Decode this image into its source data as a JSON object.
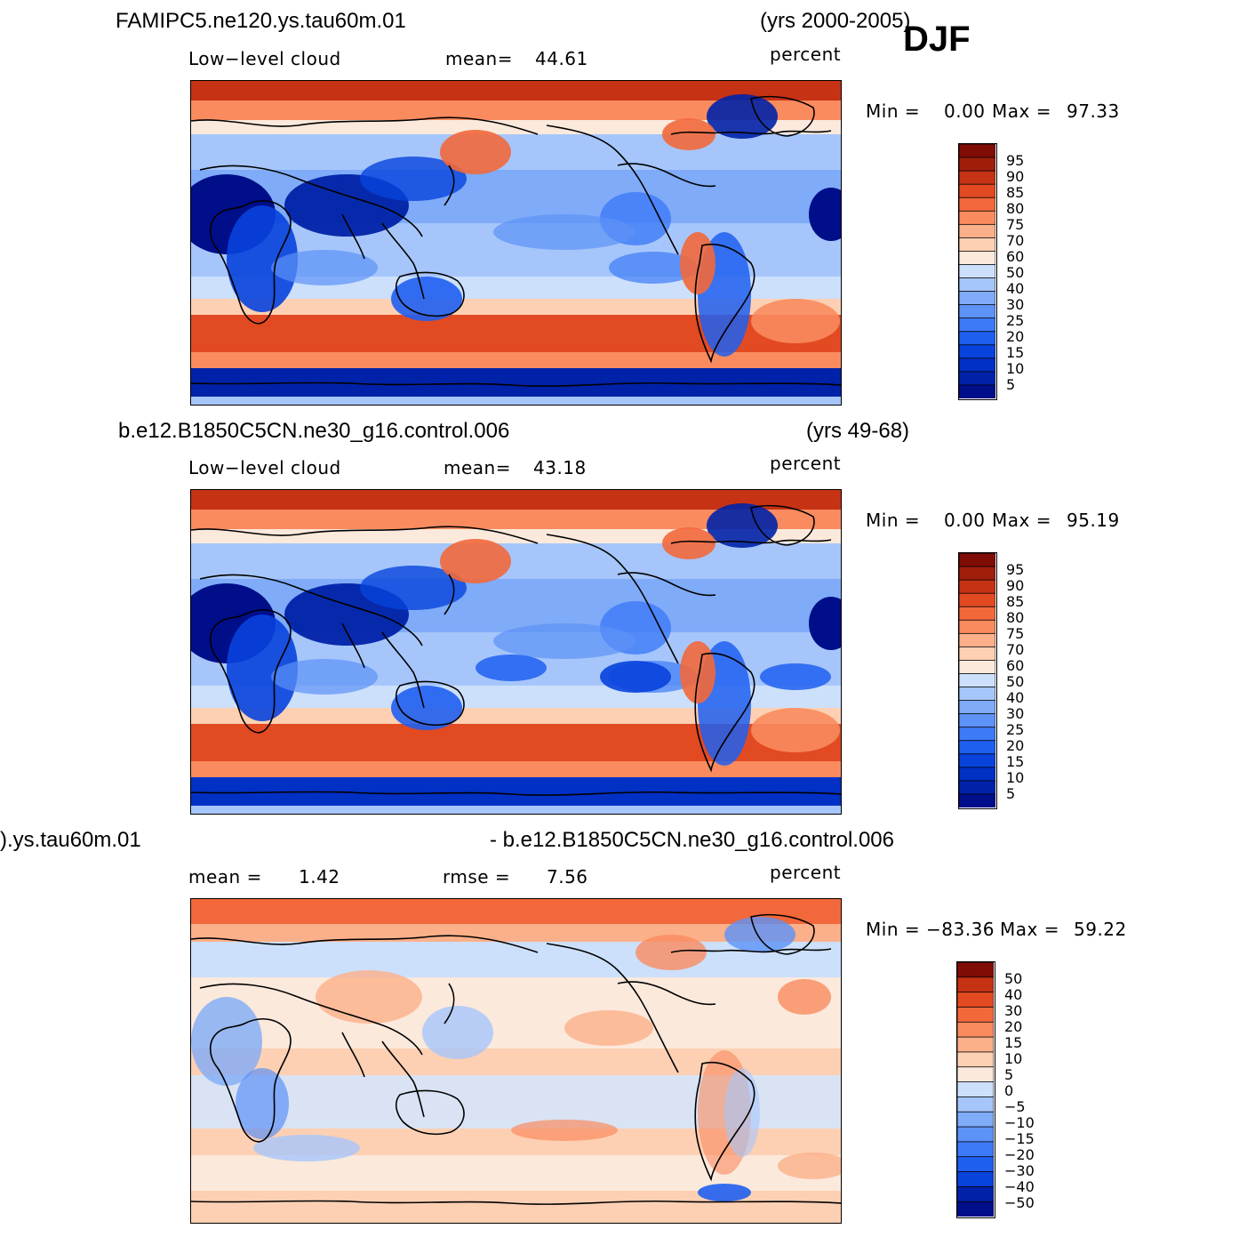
{
  "season": "DJF",
  "colors": {
    "abs_scale": [
      "#000e8a",
      "#0022a8",
      "#0030c4",
      "#0843dc",
      "#1f5ff0",
      "#3d7af7",
      "#5d92f7",
      "#7fabf8",
      "#a6c6fb",
      "#cce0fc",
      "#fbe9dc",
      "#fdd0b3",
      "#fcb08a",
      "#fa8b5f",
      "#f2683b",
      "#e24a22",
      "#c63214",
      "#a01d0b",
      "#800c06"
    ],
    "diff_scale": [
      "#000e8a",
      "#0022a8",
      "#0843dc",
      "#1f5ff0",
      "#3d7af7",
      "#5d92f7",
      "#7fabf8",
      "#a6c6fb",
      "#cce0fc",
      "#fbe9dc",
      "#fdd0b3",
      "#fcb08a",
      "#fa8b5f",
      "#f2683b",
      "#e24a22",
      "#c63214",
      "#800c06"
    ]
  },
  "chart_data": [
    {
      "type": "heatmap",
      "case": "FAMIPC5.ne120.ys.tau60m.01",
      "years": "(yrs 2000-2005)",
      "variable": "Low−level cloud",
      "units": "percent",
      "mean_label": "mean=",
      "mean": "44.61",
      "min_label": "Min =",
      "min": "0.00",
      "max_label": "Max =",
      "max": "97.33",
      "levels": [
        "95",
        "90",
        "85",
        "80",
        "75",
        "70",
        "60",
        "50",
        "40",
        "30",
        "25",
        "20",
        "15",
        "10",
        "5"
      ]
    },
    {
      "type": "heatmap",
      "case": "b.e12.B1850C5CN.ne30_g16.control.006",
      "years": "(yrs 49-68)",
      "variable": "Low−level cloud",
      "units": "percent",
      "mean_label": "mean=",
      "mean": "43.18",
      "min_label": "Min =",
      "min": "0.00",
      "max_label": "Max =",
      "max": "95.19",
      "levels": [
        "95",
        "90",
        "85",
        "80",
        "75",
        "70",
        "60",
        "50",
        "40",
        "30",
        "25",
        "20",
        "15",
        "10",
        "5"
      ]
    },
    {
      "type": "heatmap",
      "case": ").ys.tau60m.01",
      "years": "- b.e12.B1850C5CN.ne30_g16.control.006",
      "units": "percent",
      "mean_label": "mean =",
      "mean": "1.42",
      "rmse_label": "rmse =",
      "rmse": "7.56",
      "min_label": "Min =",
      "min": "−83.36",
      "max_label": "Max =",
      "max": "59.22",
      "levels": [
        "50",
        "40",
        "30",
        "20",
        "15",
        "10",
        "5",
        "0",
        "−5",
        "−10",
        "−15",
        "−20",
        "−30",
        "−40",
        "−50"
      ]
    }
  ]
}
